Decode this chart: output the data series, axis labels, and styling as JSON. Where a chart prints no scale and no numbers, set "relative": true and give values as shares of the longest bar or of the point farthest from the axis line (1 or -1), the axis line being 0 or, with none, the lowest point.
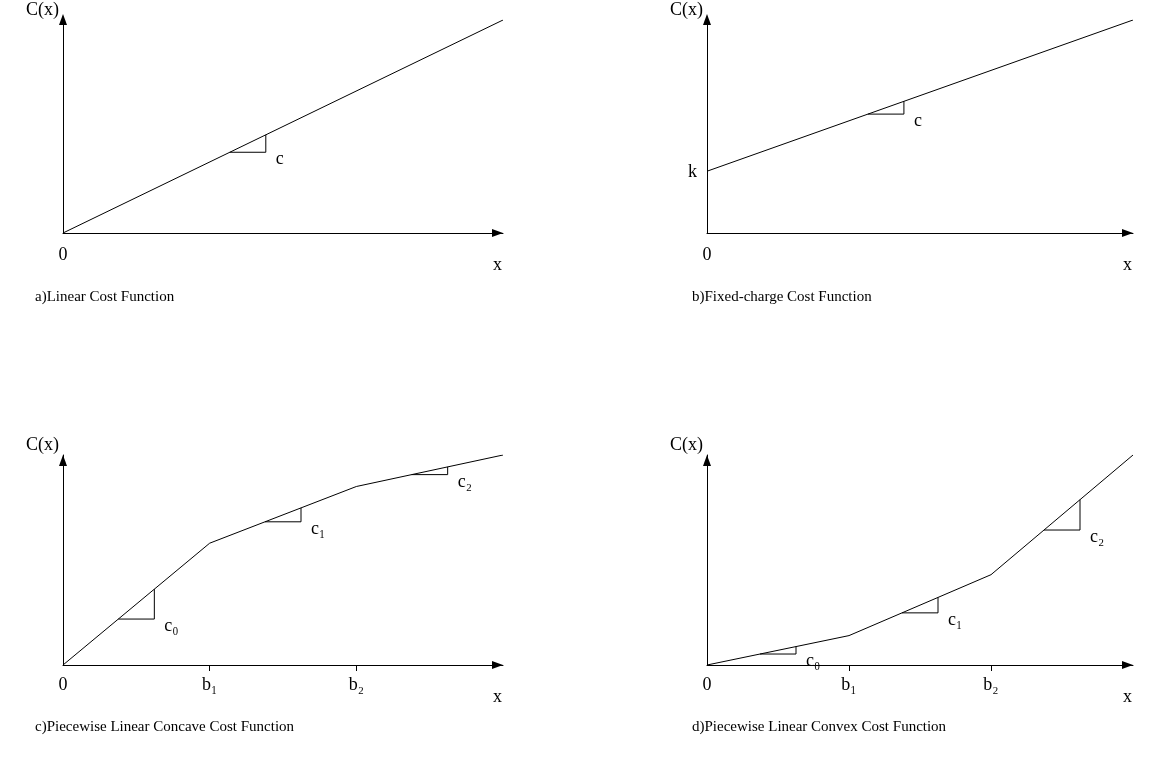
{
  "chart_data": [
    {
      "type": "line",
      "relative": true,
      "title": "a)Linear Cost Function",
      "xlabel": "x",
      "ylabel": "C(x)",
      "categories": [
        null,
        null
      ],
      "values": [
        0,
        1
      ],
      "color": "#000000",
      "tick_labels": "x",
      "marker": "none",
      "line_style": "solid",
      "annotations": [
        "0",
        "c"
      ]
    },
    {
      "type": "line",
      "relative": true,
      "title": "b)Fixed-charge Cost Function",
      "xlabel": "x",
      "ylabel": "C(x)",
      "categories": [
        null,
        null
      ],
      "values": [
        0.29,
        1
      ],
      "color": "#000000",
      "tick_labels": "x",
      "marker": "none",
      "line_style": "solid",
      "annotations": [
        "0",
        "k",
        "c"
      ]
    },
    {
      "type": "line",
      "relative": true,
      "title": "c)Piecewise Linear Concave Cost Function",
      "xlabel": "x",
      "ylabel": "C(x)",
      "categories": [
        "0",
        "b₁",
        "b₂",
        null
      ],
      "values": [
        0,
        0.58,
        0.85,
        1
      ],
      "color": "#000000",
      "tick_labels": "x",
      "marker": "none",
      "line_style": "solid",
      "annotations": [
        "c₀",
        "c₁",
        "c₂"
      ]
    },
    {
      "type": "line",
      "relative": true,
      "title": "d)Piecewise Linear Convex Cost Function",
      "xlabel": "x",
      "ylabel": "C(x)",
      "categories": [
        "0",
        "b₁",
        "b₂",
        null
      ],
      "values": [
        0,
        0.14,
        0.43,
        1
      ],
      "color": "#000000",
      "tick_labels": "x",
      "marker": "none",
      "line_style": "solid",
      "annotations": [
        "c₀",
        "c₁",
        "c₂"
      ]
    }
  ]
}
